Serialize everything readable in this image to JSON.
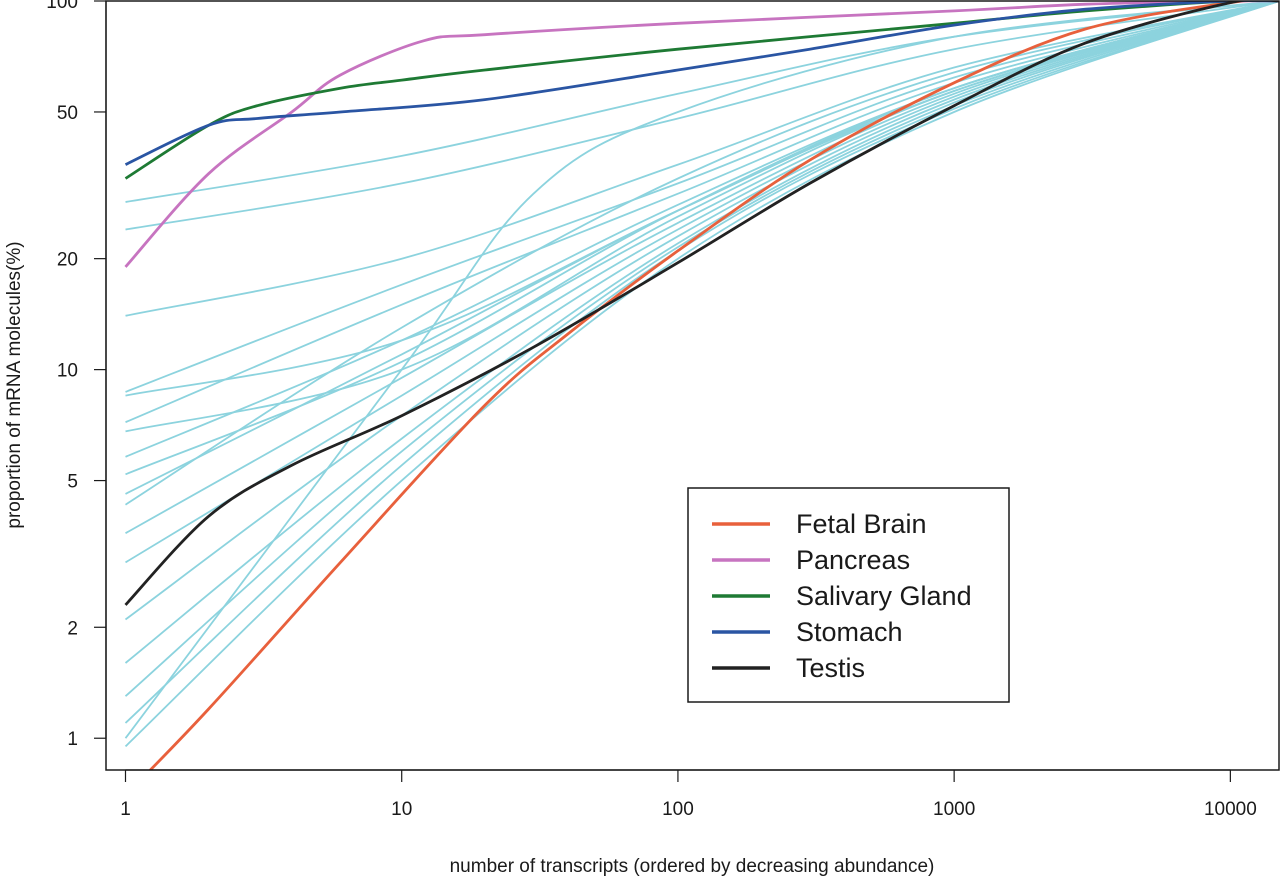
{
  "chart_data": {
    "type": "line",
    "title": "",
    "xlabel": "number of transcripts (ordered by decreasing abundance)",
    "ylabel": "proportion of mRNA molecules(%)",
    "x_scale": "log",
    "y_scale": "log",
    "xlim": [
      0.85,
      15000
    ],
    "ylim": [
      0.82,
      100
    ],
    "x_ticks": [
      1,
      10,
      100,
      1000,
      10000
    ],
    "x_tick_labels": [
      "1",
      "10",
      "100",
      "1000",
      "10000"
    ],
    "y_ticks": [
      1,
      2,
      5,
      10,
      20,
      50,
      100
    ],
    "y_tick_labels": [
      "1",
      "2",
      "5",
      "10",
      "20",
      "50",
      "100"
    ],
    "grid": false,
    "legend_position": "bottom-right",
    "colors": {
      "Fetal Brain": "#e8603c",
      "Pancreas": "#c774c0",
      "Salivary Gland": "#1e7a34",
      "Stomach": "#2a55a3",
      "Testis": "#222222",
      "other_tissues": "#8cd3de"
    },
    "series": [
      {
        "name": "Fetal Brain",
        "highlight": true,
        "x": [
          1,
          2,
          6,
          20,
          40,
          100,
          300,
          1000,
          3000,
          10000,
          15000
        ],
        "y": [
          0.7,
          1.2,
          3,
          8,
          12.5,
          21,
          37,
          60,
          84,
          99,
          100
        ]
      },
      {
        "name": "Pancreas",
        "highlight": true,
        "x": [
          1,
          2,
          4,
          6,
          12,
          20,
          100,
          1000,
          3000,
          10000,
          15000
        ],
        "y": [
          19,
          34,
          50,
          63,
          78,
          81,
          87,
          94,
          98,
          100,
          100
        ]
      },
      {
        "name": "Salivary Gland",
        "highlight": true,
        "x": [
          1,
          2,
          3,
          6,
          10,
          20,
          100,
          1000,
          3000,
          10000,
          15000
        ],
        "y": [
          33,
          46,
          52,
          58,
          61,
          65,
          74,
          87,
          94,
          100,
          100
        ]
      },
      {
        "name": "Stomach",
        "highlight": true,
        "x": [
          1,
          2,
          3,
          6,
          20,
          100,
          300,
          1000,
          3000,
          10000,
          15000
        ],
        "y": [
          36,
          46,
          48,
          50,
          54,
          65,
          74,
          86,
          95,
          100,
          100
        ]
      },
      {
        "name": "Testis",
        "highlight": true,
        "x": [
          1,
          2,
          4,
          10,
          30,
          100,
          300,
          1000,
          3000,
          10000,
          15000
        ],
        "y": [
          2.3,
          4,
          5.5,
          7.5,
          11.5,
          19.5,
          32,
          52,
          77,
          99,
          100
        ]
      },
      {
        "highlight": false,
        "x": [
          1,
          10,
          100,
          1000,
          15000
        ],
        "y": [
          28.5,
          38,
          56,
          80,
          100
        ]
      },
      {
        "highlight": false,
        "x": [
          1,
          10,
          100,
          1000,
          15000
        ],
        "y": [
          24,
          32,
          48,
          74,
          100
        ]
      },
      {
        "highlight": false,
        "x": [
          1,
          10,
          100,
          1000,
          15000
        ],
        "y": [
          14,
          20,
          36,
          66,
          100
        ]
      },
      {
        "highlight": false,
        "x": [
          1,
          10,
          100,
          1000,
          15000
        ],
        "y": [
          8.7,
          17,
          32,
          62,
          100
        ]
      },
      {
        "highlight": false,
        "x": [
          1,
          10,
          100,
          1000,
          15000
        ],
        "y": [
          7.2,
          15,
          30,
          60,
          100
        ]
      },
      {
        "highlight": false,
        "x": [
          1,
          10,
          100,
          1000,
          15000
        ],
        "y": [
          5.8,
          12,
          28,
          58,
          100
        ]
      },
      {
        "highlight": false,
        "x": [
          1,
          10,
          100,
          1000,
          15000
        ],
        "y": [
          4.6,
          11,
          27,
          57,
          100
        ]
      },
      {
        "highlight": false,
        "x": [
          1,
          10,
          100,
          1000,
          15000
        ],
        "y": [
          3.6,
          9.5,
          25,
          56,
          100
        ]
      },
      {
        "highlight": false,
        "x": [
          1,
          10,
          100,
          1000,
          15000
        ],
        "y": [
          3.0,
          8.5,
          24,
          55,
          100
        ]
      },
      {
        "highlight": false,
        "x": [
          1,
          10,
          100,
          1000,
          15000
        ],
        "y": [
          2.1,
          7.5,
          23,
          54,
          100
        ]
      },
      {
        "highlight": false,
        "x": [
          1,
          10,
          100,
          1000,
          15000
        ],
        "y": [
          1.6,
          6.5,
          22,
          53,
          100
        ]
      },
      {
        "highlight": false,
        "x": [
          1,
          10,
          100,
          1000,
          15000
        ],
        "y": [
          1.3,
          6,
          21.5,
          52,
          100
        ]
      },
      {
        "highlight": false,
        "x": [
          1,
          10,
          100,
          1000,
          15000
        ],
        "y": [
          1.1,
          5.5,
          21,
          51,
          100
        ]
      },
      {
        "highlight": false,
        "x": [
          1,
          10,
          100,
          1000,
          15000
        ],
        "y": [
          0.95,
          5,
          20,
          50,
          100
        ]
      },
      {
        "highlight": false,
        "x": [
          1,
          10,
          30,
          100,
          1000,
          15000
        ],
        "y": [
          1.0,
          10,
          30,
          50,
          80,
          100
        ]
      },
      {
        "highlight": false,
        "x": [
          1,
          10,
          100,
          1000,
          15000
        ],
        "y": [
          8.5,
          12,
          27,
          58,
          100
        ]
      },
      {
        "highlight": false,
        "x": [
          1,
          10,
          100,
          1000,
          15000
        ],
        "y": [
          6.8,
          10,
          26,
          57,
          100
        ]
      },
      {
        "highlight": false,
        "x": [
          1,
          10,
          100,
          1000,
          15000
        ],
        "y": [
          5.2,
          10.5,
          27,
          58,
          100
        ]
      },
      {
        "highlight": false,
        "x": [
          1,
          10,
          100,
          1000,
          15000
        ],
        "y": [
          4.3,
          13,
          33,
          64,
          100
        ]
      }
    ]
  },
  "legend": {
    "items": [
      {
        "label": "Fetal Brain",
        "color": "#e8603c"
      },
      {
        "label": "Pancreas",
        "color": "#c774c0"
      },
      {
        "label": "Salivary Gland",
        "color": "#1e7a34"
      },
      {
        "label": "Stomach",
        "color": "#2a55a3"
      },
      {
        "label": "Testis",
        "color": "#222222"
      }
    ]
  }
}
